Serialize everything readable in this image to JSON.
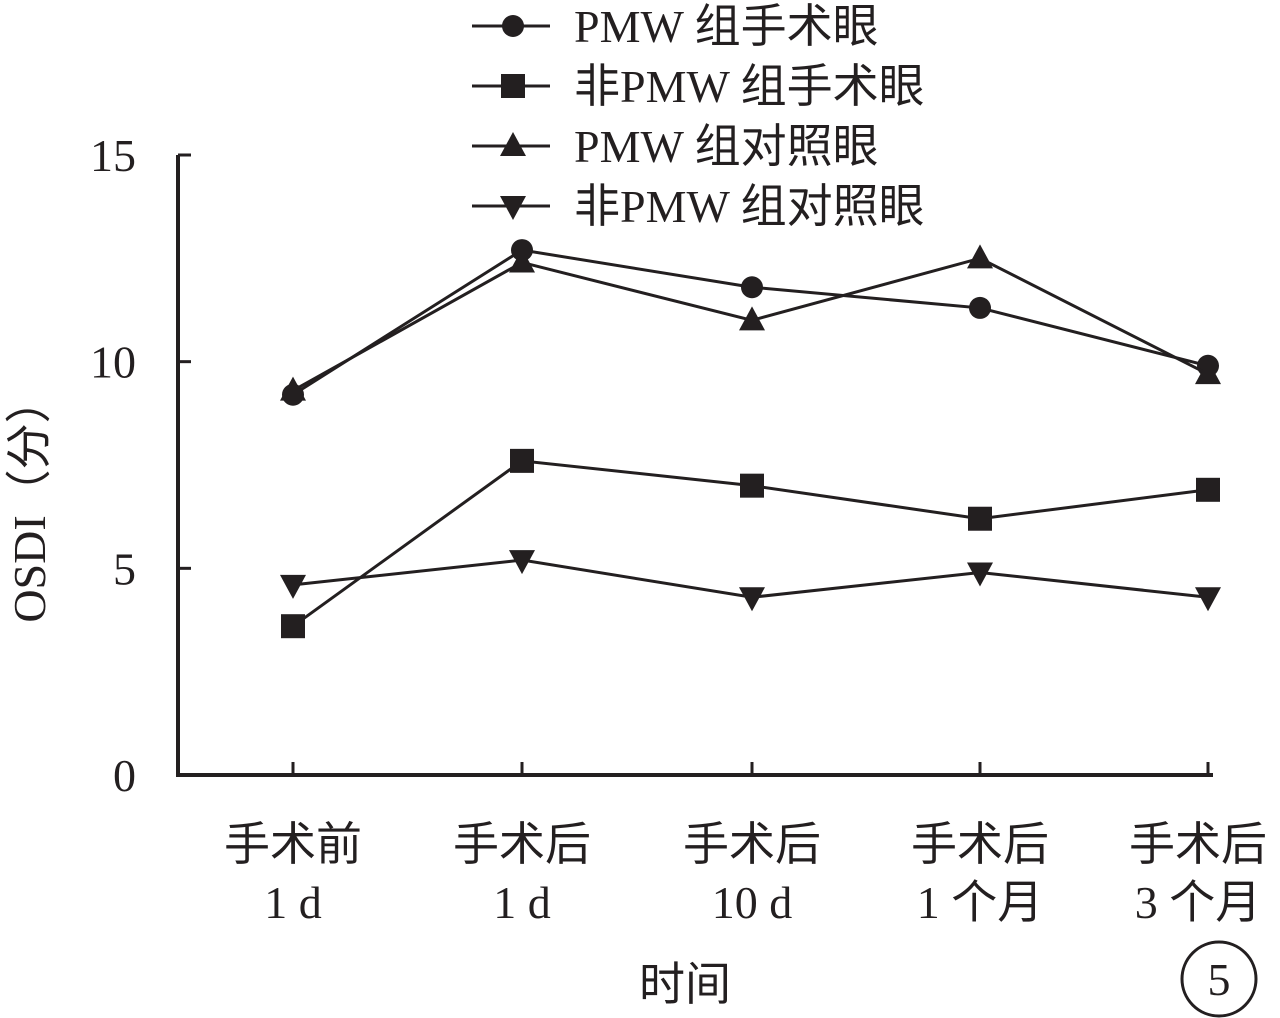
{
  "chart_data": {
    "type": "line",
    "categories": [
      [
        "手术前",
        "1 d"
      ],
      [
        "手术后",
        "1 d"
      ],
      [
        "手术后",
        "10 d"
      ],
      [
        "手术后",
        "1 个月"
      ],
      [
        "手术后",
        "3 个月"
      ]
    ],
    "series": [
      {
        "name": "PMW 组手术眼",
        "marker": "circle",
        "values": [
          9.2,
          12.7,
          11.8,
          11.3,
          9.9
        ]
      },
      {
        "name": "非PMW 组手术眼",
        "marker": "square",
        "values": [
          3.6,
          7.6,
          7.0,
          6.2,
          6.9
        ]
      },
      {
        "name": "PMW 组对照眼",
        "marker": "triangle-up",
        "values": [
          9.3,
          12.4,
          11.0,
          12.5,
          9.7
        ]
      },
      {
        "name": "非PMW 组对照眼",
        "marker": "triangle-down",
        "values": [
          4.6,
          5.2,
          4.3,
          4.9,
          4.3
        ]
      }
    ],
    "ylabel": "OSDI（分）",
    "xlabel": "时间",
    "ylim": [
      0,
      15
    ],
    "yticks": [
      0,
      5,
      10,
      15
    ],
    "grid": false,
    "legend_position": "top",
    "panel_label": "5",
    "colors": {
      "ink": "#231f20"
    }
  }
}
